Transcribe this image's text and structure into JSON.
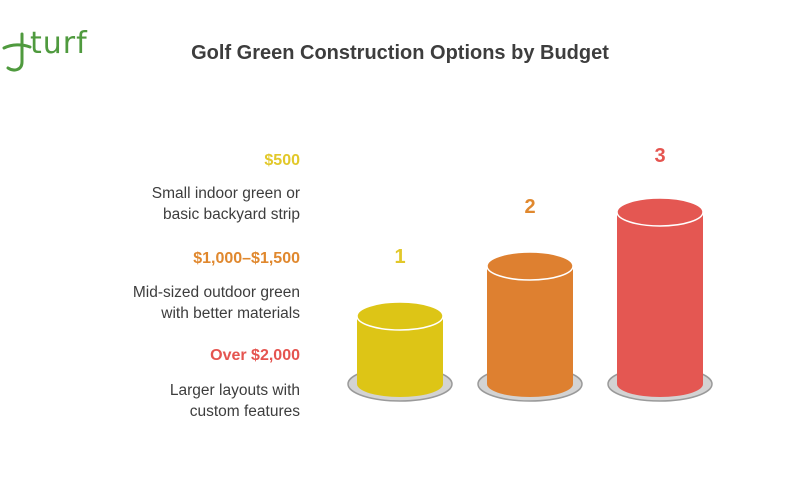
{
  "brand": {
    "name": "turf"
  },
  "title": "Golf Green Construction Options by Budget",
  "tiers": [
    {
      "rank": "1",
      "price": "$500",
      "description": "Small indoor green or\nbasic backyard strip",
      "color": "#ddc516"
    },
    {
      "rank": "2",
      "price": "$1,000–$1,500",
      "description": "Mid-sized outdoor green\nwith better materials",
      "color": "#de8030"
    },
    {
      "rank": "3",
      "price": "Over $2,000",
      "description": "Larger layouts with\ncustom features",
      "color": "#e45752"
    }
  ],
  "colors": {
    "price_1": "#e2c82a",
    "price_2": "#e0882e",
    "price_3": "#e5544f",
    "base": "#c9c9c9",
    "brand": "#4f9a3e"
  }
}
